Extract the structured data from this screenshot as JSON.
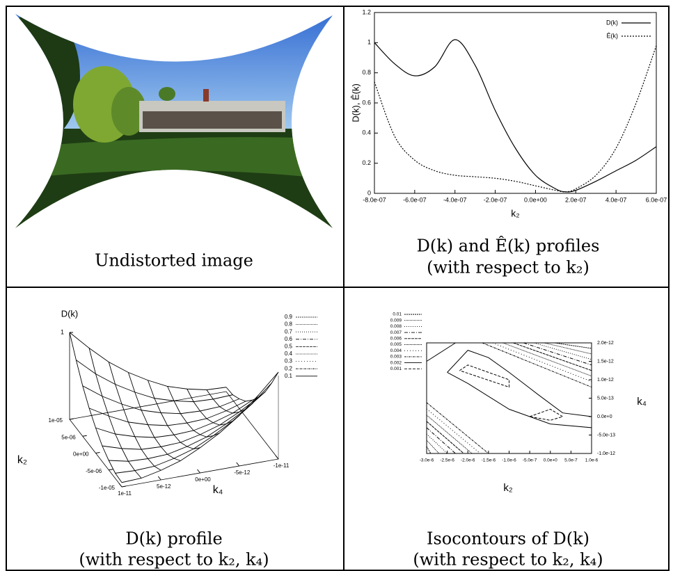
{
  "figure": {
    "captions": [
      [
        "Undistorted image"
      ],
      [
        "D(k) and Ê(k) profiles",
        "(with respect to k₂)"
      ],
      [
        "D(k) profile",
        "(with respect to k₂, k₄)"
      ],
      [
        "Isocontours of D(k)",
        "(with respect to k₂, k₄)"
      ]
    ]
  },
  "chart_data": [
    {
      "type": "line",
      "x_label": "k₂",
      "y_label": "D(k), Ê(k)",
      "x": [
        -8e-07,
        -7e-07,
        -6e-07,
        -5e-07,
        -4e-07,
        -3e-07,
        -2e-07,
        -1e-07,
        0,
        1e-07,
        1.5e-07,
        2e-07,
        3e-07,
        4e-07,
        5e-07,
        6e-07
      ],
      "xlim": [
        -8e-07,
        6e-07
      ],
      "xticks": [
        {
          "value": -8e-07,
          "label": "-8.0e-07"
        },
        {
          "value": -6e-07,
          "label": "-6.0e-07"
        },
        {
          "value": -4e-07,
          "label": "-4.0e-07"
        },
        {
          "value": -2e-07,
          "label": "-2.0e-07"
        },
        {
          "value": 0,
          "label": "0.0e+00"
        },
        {
          "value": 2e-07,
          "label": "2.0e-07"
        },
        {
          "value": 4e-07,
          "label": "4.0e-07"
        },
        {
          "value": 6e-07,
          "label": "6.0e-07"
        }
      ],
      "ylim": [
        0,
        1.2
      ],
      "yticks": [
        0,
        0.2,
        0.4,
        0.6,
        0.8,
        1,
        1.2
      ],
      "legend": "upper right",
      "series": [
        {
          "name": "D(k)",
          "color": "#000000",
          "values": [
            1.0,
            0.86,
            0.78,
            0.84,
            1.02,
            0.85,
            0.55,
            0.3,
            0.12,
            0.03,
            0.01,
            0.02,
            0.08,
            0.15,
            0.22,
            0.31
          ]
        },
        {
          "name": "Ê(k)",
          "color": "#000000",
          "values": [
            0.74,
            0.38,
            0.22,
            0.15,
            0.12,
            0.11,
            0.1,
            0.08,
            0.05,
            0.02,
            0.01,
            0.03,
            0.12,
            0.3,
            0.6,
            0.98
          ]
        }
      ]
    },
    {
      "type": "surface3d",
      "z_label": "D(k)",
      "x_label": "k₄",
      "y_label": "k₂",
      "x": [
        -1e-11,
        -7.5e-12,
        -5e-12,
        -2.5e-12,
        0,
        2.5e-12,
        5e-12,
        7.5e-12,
        1e-11
      ],
      "y": [
        -1e-05,
        -7.5e-06,
        -5e-06,
        -2.5e-06,
        0,
        2.5e-06,
        5e-06,
        7.5e-06,
        1e-05
      ],
      "z": [
        [
          1.0,
          0.78,
          0.58,
          0.42,
          0.29,
          0.18,
          0.11,
          0.06,
          0.05
        ],
        [
          0.78,
          0.58,
          0.42,
          0.29,
          0.18,
          0.11,
          0.06,
          0.05,
          0.06
        ],
        [
          0.58,
          0.42,
          0.29,
          0.18,
          0.11,
          0.06,
          0.05,
          0.06,
          0.11
        ],
        [
          0.42,
          0.29,
          0.18,
          0.11,
          0.06,
          0.05,
          0.06,
          0.11,
          0.18
        ],
        [
          0.29,
          0.18,
          0.11,
          0.06,
          0.05,
          0.06,
          0.11,
          0.18,
          0.29
        ],
        [
          0.18,
          0.11,
          0.06,
          0.05,
          0.06,
          0.11,
          0.18,
          0.29,
          0.42
        ],
        [
          0.11,
          0.06,
          0.05,
          0.06,
          0.11,
          0.18,
          0.29,
          0.42,
          0.58
        ],
        [
          0.06,
          0.05,
          0.06,
          0.11,
          0.18,
          0.29,
          0.42,
          0.58,
          0.78
        ],
        [
          0.05,
          0.06,
          0.11,
          0.18,
          0.29,
          0.42,
          0.58,
          0.78,
          1.0
        ]
      ],
      "xlim": [
        -1e-11,
        1e-11
      ],
      "xticks": [
        {
          "value": 1e-11,
          "label": "1e-11"
        },
        {
          "value": 5e-12,
          "label": "5e-12"
        },
        {
          "value": 0,
          "label": "0e+00"
        },
        {
          "value": -5e-12,
          "label": "-5e-12"
        },
        {
          "value": -1e-11,
          "label": "-1e-11"
        }
      ],
      "ylim": [
        -1e-05,
        1e-05
      ],
      "yticks": [
        {
          "value": 1e-05,
          "label": "1e-05"
        },
        {
          "value": 5e-06,
          "label": "5e-06"
        },
        {
          "value": 0,
          "label": "0e+00"
        },
        {
          "value": -5e-06,
          "label": "-5e-06"
        },
        {
          "value": -1e-05,
          "label": "-1e-05"
        }
      ],
      "zlim": [
        0,
        1
      ],
      "zticks": [
        1
      ],
      "contour_levels": [
        0.9,
        0.8,
        0.7,
        0.6,
        0.5,
        0.4,
        0.3,
        0.2,
        0.1
      ]
    },
    {
      "type": "contour",
      "x_label": "k₂",
      "y_label": "k₄",
      "xlim": [
        -3e-06,
        1e-06
      ],
      "xticks": [
        {
          "value": -3e-06,
          "label": "-3.0e-6"
        },
        {
          "value": -2.5e-06,
          "label": "-2.5e-6"
        },
        {
          "value": -2e-06,
          "label": "-2.0e-6"
        },
        {
          "value": -1.5e-06,
          "label": "-1.5e-6"
        },
        {
          "value": -1e-06,
          "label": "-1.0e-6"
        },
        {
          "value": -5e-07,
          "label": "-5.0e-7"
        },
        {
          "value": 0,
          "label": "0.0e+0"
        },
        {
          "value": 5e-07,
          "label": "5.0e-7"
        },
        {
          "value": 1e-06,
          "label": "1.0e-6"
        }
      ],
      "ylim": [
        -1e-12,
        2e-12
      ],
      "yticks": [
        {
          "value": 2e-12,
          "label": "2.0e-12"
        },
        {
          "value": 1.5e-12,
          "label": "1.5e-12"
        },
        {
          "value": 1e-12,
          "label": "1.0e-12"
        },
        {
          "value": 5e-13,
          "label": "5.0e-13"
        },
        {
          "value": 0,
          "label": "0.0e+0"
        },
        {
          "value": -5e-13,
          "label": "-5.0e-13"
        },
        {
          "value": -1e-12,
          "label": "-1.0e-12"
        }
      ],
      "series": [
        {
          "name": "0.01",
          "x": [
            1e-07,
            1e-06,
            null,
            -3e-06,
            -2.9e-06
          ],
          "y": [
            2e-12,
            1.85e-12,
            null,
            -8.1e-13,
            -1e-12
          ]
        },
        {
          "name": "0.009",
          "x": [
            -1.5e-07,
            1e-06,
            null,
            -3e-06,
            -2.7e-06
          ],
          "y": [
            2e-12,
            1.7e-12,
            null,
            -6.4e-13,
            -1e-12
          ]
        },
        {
          "name": "0.008",
          "x": [
            -4e-07,
            1e-06,
            null,
            -3e-06,
            -2.5e-06
          ],
          "y": [
            2e-12,
            1.55e-12,
            null,
            -4.7e-13,
            -1e-12
          ]
        },
        {
          "name": "0.007",
          "x": [
            -6.5e-07,
            1e-06,
            null,
            -3e-06,
            -2.3e-06
          ],
          "y": [
            2e-12,
            1.4e-12,
            null,
            -3e-13,
            -1e-12
          ]
        },
        {
          "name": "0.006",
          "x": [
            -9e-07,
            1e-06,
            null,
            -3e-06,
            -2.1e-06
          ],
          "y": [
            2e-12,
            1.25e-12,
            null,
            -1.3e-13,
            -1e-12
          ]
        },
        {
          "name": "0.005",
          "x": [
            -1.15e-06,
            1e-06,
            null,
            -3e-06,
            -1.9e-06
          ],
          "y": [
            2e-12,
            1.1e-12,
            null,
            4e-14,
            -1e-12
          ]
        },
        {
          "name": "0.004",
          "x": [
            -1.4e-06,
            1e-06,
            null,
            -3e-06,
            -1.7e-06
          ],
          "y": [
            2e-12,
            9.5e-13,
            null,
            2.1e-13,
            -1e-12
          ]
        },
        {
          "name": "0.003",
          "x": [
            -1.65e-06,
            1e-06,
            null,
            -3e-06,
            -1.5e-06
          ],
          "y": [
            2e-12,
            8e-13,
            null,
            3.8e-13,
            -1e-12
          ]
        },
        {
          "name": "0.002",
          "x": [
            -3e-06,
            -2.3e-06,
            null,
            -2.5e-06,
            -2e-06,
            -1.5e-06,
            -1e-06,
            -3e-07,
            3e-07,
            1e-06,
            1e-06,
            0,
            -1e-06,
            -2e-06,
            -2.5e-06
          ],
          "y": [
            1.5e-12,
            2e-12,
            null,
            1.2e-12,
            1.8e-12,
            1.6e-12,
            1.2e-12,
            6e-13,
            1e-13,
            0,
            -3e-13,
            -2e-13,
            2e-13,
            9e-13,
            1.2e-12
          ]
        },
        {
          "name": "0.001",
          "x": [
            -2.2e-06,
            -2e-06,
            -1e-06,
            -1e-06,
            -2.2e-06,
            null,
            -5e-07,
            0,
            3e-07,
            0,
            -5e-07
          ],
          "y": [
            1.25e-12,
            1.4e-12,
            1e-12,
            8e-13,
            1.25e-12,
            null,
            0,
            2e-13,
            0,
            -1e-13,
            0
          ]
        }
      ]
    }
  ]
}
